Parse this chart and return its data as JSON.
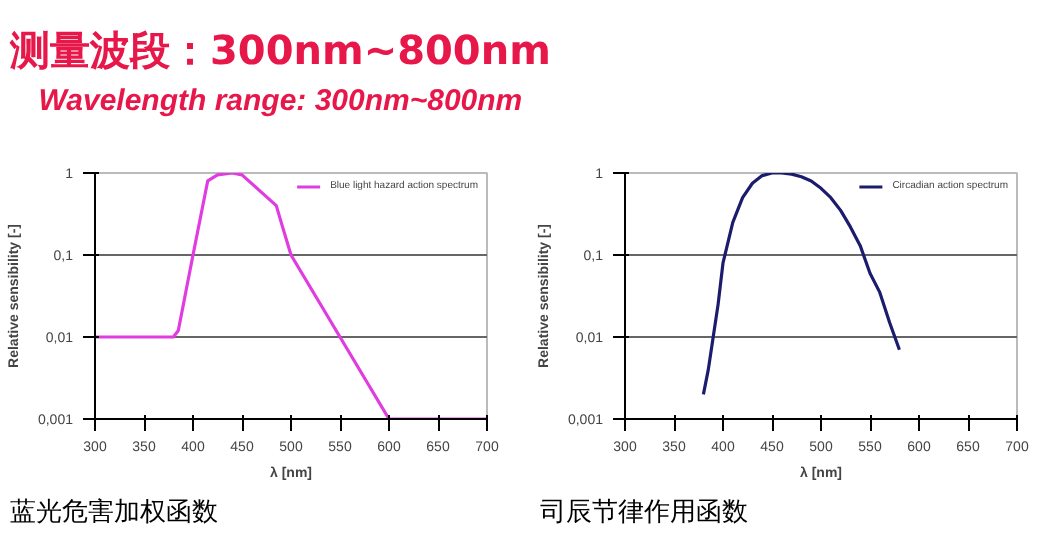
{
  "chart_data": [
    {
      "type": "line",
      "title": "测量波段：300nm~800nm",
      "subtitle": "Wavelength range: 300nm~800nm",
      "xlabel": "λ [nm]",
      "ylabel": "Relative sensibility [-]",
      "log": "y",
      "grid": "y",
      "legend": "top right",
      "marker": "none",
      "line_style": "solid",
      "xlim": [
        300,
        700
      ],
      "xticks": [
        300,
        350,
        400,
        450,
        500,
        550,
        600,
        650,
        700
      ],
      "ylim": [
        0.001,
        1
      ],
      "yticks": [
        {
          "value": 0.001,
          "label": "0,001"
        },
        {
          "value": 0.01,
          "label": "0,01"
        },
        {
          "value": 0.1,
          "label": "0,1"
        },
        {
          "value": 1,
          "label": "1"
        }
      ],
      "x": [
        300,
        380,
        385,
        400,
        415,
        425,
        440,
        450,
        485,
        490,
        500,
        550,
        600,
        700
      ],
      "series": [
        {
          "name": "Blue light hazard action spectrum",
          "color": "#e03ce0",
          "values": [
            0.01,
            0.01,
            0.012,
            0.1,
            0.8,
            0.95,
            1.0,
            0.95,
            0.4,
            0.25,
            0.1,
            0.01,
            0.001,
            0.001
          ]
        }
      ],
      "annotations": [
        "蓝光危害加权函数"
      ]
    },
    {
      "type": "line",
      "xlabel": "λ [nm]",
      "ylabel": "Relative sensibility [-]",
      "log": "y",
      "grid": "y",
      "legend": "top right",
      "marker": "none",
      "line_style": "solid",
      "xlim": [
        300,
        700
      ],
      "xticks": [
        300,
        350,
        400,
        450,
        500,
        550,
        600,
        650,
        700
      ],
      "ylim": [
        0.001,
        1
      ],
      "yticks": [
        {
          "value": 0.001,
          "label": "0,001"
        },
        {
          "value": 0.01,
          "label": "0,01"
        },
        {
          "value": 0.1,
          "label": "0,1"
        },
        {
          "value": 1,
          "label": "1"
        }
      ],
      "x": [
        380,
        385,
        390,
        395,
        400,
        410,
        420,
        430,
        440,
        450,
        460,
        470,
        480,
        490,
        500,
        510,
        520,
        530,
        540,
        550,
        560,
        570,
        580
      ],
      "series": [
        {
          "name": "Circadian action spectrum",
          "color": "#1c1c6e",
          "values": [
            0.002,
            0.004,
            0.01,
            0.025,
            0.08,
            0.25,
            0.5,
            0.75,
            0.93,
            1.0,
            1.0,
            0.97,
            0.9,
            0.8,
            0.65,
            0.5,
            0.35,
            0.22,
            0.13,
            0.06,
            0.035,
            0.015,
            0.007
          ]
        }
      ],
      "annotations": [
        "司辰节律作用函数"
      ]
    }
  ]
}
